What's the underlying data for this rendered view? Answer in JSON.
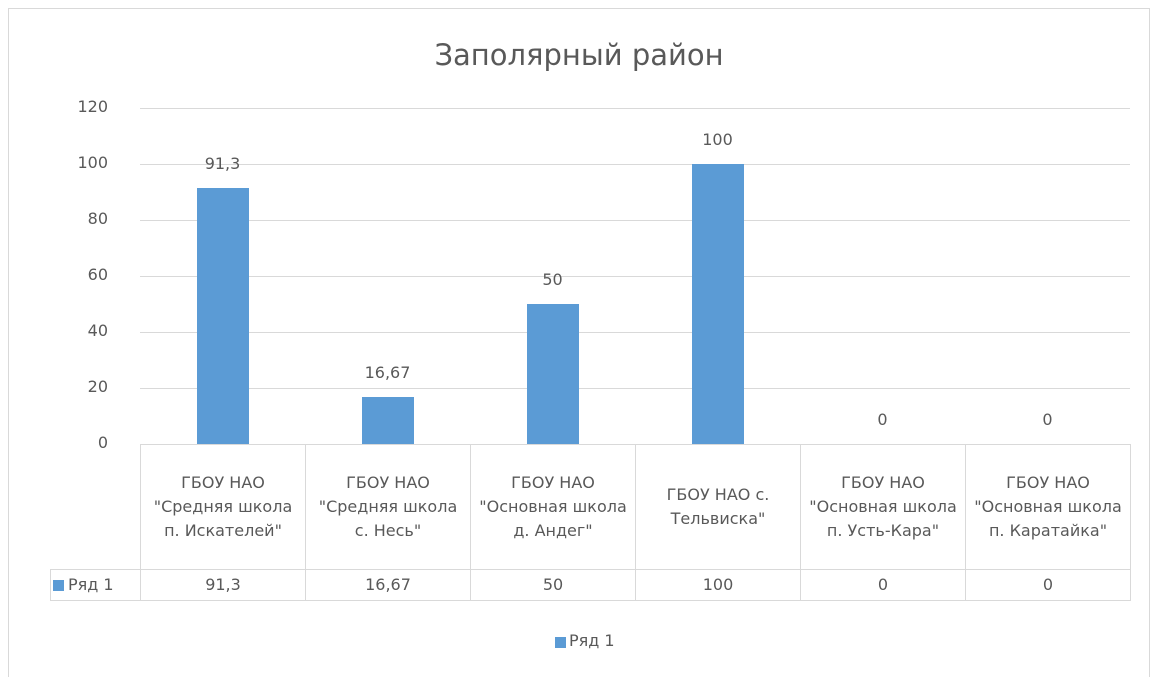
{
  "chart_data": {
    "type": "bar",
    "title": "Заполярный район",
    "categories": [
      "ГБОУ НАО \"Средняя школа п. Искателей\"",
      "ГБОУ НАО \"Средняя школа с. Несь\"",
      "ГБОУ НАО \"Основная школа д. Андег\"",
      "ГБОУ НАО с. Тельвиска\"",
      "ГБОУ НАО \"Основная школа п. Усть-Кара\"",
      "ГБОУ НАО \"Основная школа п. Каратайка\""
    ],
    "series": [
      {
        "name": "Ряд 1",
        "color": "#5b9bd5",
        "values": [
          91.3,
          16.67,
          50,
          100,
          0,
          0
        ],
        "value_labels": [
          "91,3",
          "16,67",
          "50",
          "100",
          "0",
          "0"
        ]
      }
    ],
    "ylim": [
      0,
      120
    ],
    "yticks": [
      0,
      20,
      40,
      60,
      80,
      100,
      120
    ],
    "grid": true,
    "data_table": true,
    "legend": "bottom"
  }
}
